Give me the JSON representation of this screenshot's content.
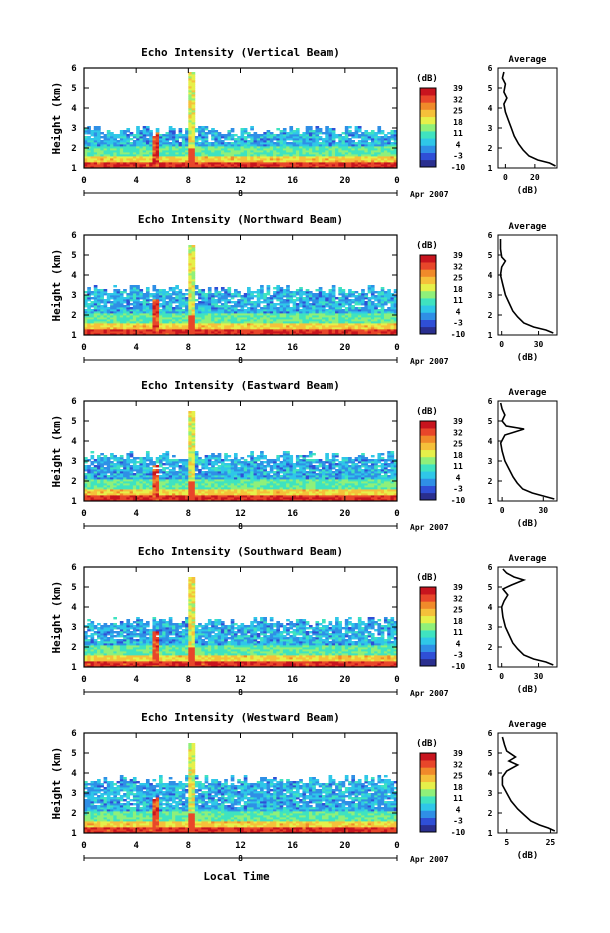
{
  "chart_data": {
    "type": "heatmap",
    "x_label": "Local Time",
    "date_label": "Apr 2007",
    "date_day": "8",
    "x_ticks": [
      "0",
      "4",
      "8",
      "12",
      "16",
      "20",
      "0"
    ],
    "x_range": [
      0,
      24
    ],
    "y_label": "Height (km)",
    "y_ticks": [
      "1",
      "2",
      "3",
      "4",
      "5",
      "6"
    ],
    "y_range": [
      1,
      6
    ],
    "colorbar": {
      "unit": "(dB)",
      "ticks": [
        "39",
        "32",
        "25",
        "18",
        "11",
        "4",
        "-3",
        "-10"
      ],
      "range": [
        -10,
        39
      ],
      "colors": [
        "#2a2f8f",
        "#2f4fd6",
        "#2f8fe6",
        "#2fc7e8",
        "#3fe3c0",
        "#8ff07a",
        "#e6f04a",
        "#f5c03a",
        "#f08a2a",
        "#e8462a",
        "#c8141e"
      ]
    },
    "avg_title": "Average",
    "avg_xlabel": "(dB)",
    "panels": [
      {
        "title": "Echo Intensity (Vertical Beam)",
        "cloud_top": 2.8,
        "avg_ticks": [
          "0",
          "20"
        ],
        "avg_tick_vals": [
          0,
          20
        ],
        "avg_xlim": [
          -5,
          35
        ],
        "average": [
          [
            34,
            1.1
          ],
          [
            30,
            1.25
          ],
          [
            22,
            1.4
          ],
          [
            16,
            1.6
          ],
          [
            12,
            1.9
          ],
          [
            9,
            2.2
          ],
          [
            6,
            2.6
          ],
          [
            4,
            3
          ],
          [
            2,
            3.4
          ],
          [
            0,
            3.8
          ],
          [
            -1,
            4.2
          ],
          [
            1,
            4.5
          ],
          [
            -1,
            4.8
          ],
          [
            0,
            5.2
          ],
          [
            -2,
            5.5
          ],
          [
            -1,
            5.8
          ]
        ]
      },
      {
        "title": "Echo Intensity (Northward Beam)",
        "cloud_top": 3.2,
        "avg_ticks": [
          "0",
          "30"
        ],
        "avg_tick_vals": [
          0,
          30
        ],
        "avg_xlim": [
          -3,
          45
        ],
        "average": [
          [
            42,
            1.1
          ],
          [
            36,
            1.25
          ],
          [
            26,
            1.4
          ],
          [
            18,
            1.6
          ],
          [
            13,
            1.9
          ],
          [
            9,
            2.2
          ],
          [
            6,
            2.6
          ],
          [
            3,
            3
          ],
          [
            1,
            3.5
          ],
          [
            -1,
            4
          ],
          [
            0,
            4.4
          ],
          [
            3,
            4.7
          ],
          [
            0,
            4.9
          ],
          [
            -1,
            5.3
          ],
          [
            -1,
            5.8
          ]
        ]
      },
      {
        "title": "Echo Intensity (Eastward Beam)",
        "cloud_top": 3.2,
        "avg_ticks": [
          "0",
          "30"
        ],
        "avg_tick_vals": [
          0,
          30
        ],
        "avg_xlim": [
          -3,
          40
        ],
        "average": [
          [
            38,
            1.1
          ],
          [
            30,
            1.25
          ],
          [
            22,
            1.4
          ],
          [
            15,
            1.6
          ],
          [
            11,
            1.9
          ],
          [
            8,
            2.2
          ],
          [
            5,
            2.6
          ],
          [
            2,
            3
          ],
          [
            0,
            3.5
          ],
          [
            -1,
            3.9
          ],
          [
            2,
            4.3
          ],
          [
            16,
            4.6
          ],
          [
            3,
            4.75
          ],
          [
            0,
            5
          ],
          [
            2,
            5.3
          ],
          [
            0,
            5.6
          ],
          [
            -1,
            5.9
          ]
        ]
      },
      {
        "title": "Echo Intensity (Southward Beam)",
        "cloud_top": 3.2,
        "avg_ticks": [
          "0",
          "30"
        ],
        "avg_tick_vals": [
          0,
          30
        ],
        "avg_xlim": [
          -3,
          45
        ],
        "average": [
          [
            42,
            1.1
          ],
          [
            36,
            1.25
          ],
          [
            26,
            1.4
          ],
          [
            18,
            1.6
          ],
          [
            13,
            1.9
          ],
          [
            9,
            2.2
          ],
          [
            6,
            2.6
          ],
          [
            3,
            3
          ],
          [
            1,
            3.5
          ],
          [
            0,
            4
          ],
          [
            2,
            4.3
          ],
          [
            5,
            4.6
          ],
          [
            1,
            4.9
          ],
          [
            8,
            5.1
          ],
          [
            18,
            5.35
          ],
          [
            10,
            5.5
          ],
          [
            4,
            5.7
          ],
          [
            1,
            5.9
          ]
        ]
      },
      {
        "title": "Echo Intensity (Westward Beam)",
        "cloud_top": 3.6,
        "avg_ticks": [
          "5",
          "25"
        ],
        "avg_tick_vals": [
          5,
          25
        ],
        "avg_xlim": [
          1,
          28
        ],
        "average": [
          [
            27,
            1.1
          ],
          [
            24,
            1.25
          ],
          [
            20,
            1.4
          ],
          [
            16,
            1.6
          ],
          [
            13,
            1.9
          ],
          [
            10,
            2.2
          ],
          [
            7,
            2.6
          ],
          [
            5,
            3
          ],
          [
            3,
            3.4
          ],
          [
            3,
            3.8
          ],
          [
            5,
            4.1
          ],
          [
            10,
            4.4
          ],
          [
            6,
            4.6
          ],
          [
            9,
            4.8
          ],
          [
            5,
            5.1
          ],
          [
            4,
            5.4
          ],
          [
            3,
            5.8
          ]
        ]
      }
    ]
  }
}
